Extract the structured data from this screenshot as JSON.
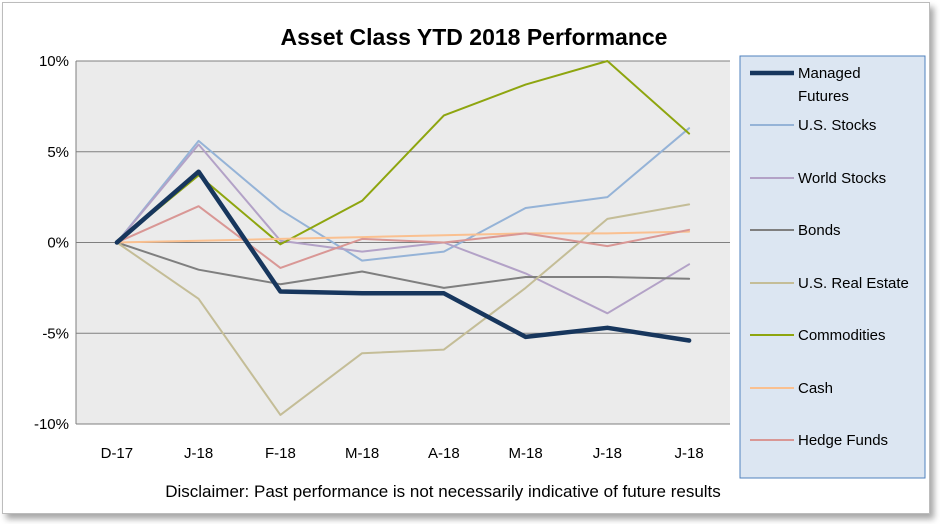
{
  "chart_data": {
    "type": "line",
    "title": "Asset Class YTD 2018 Performance",
    "categories": [
      "D-17",
      "J-18",
      "F-18",
      "M-18",
      "A-18",
      "M-18",
      "J-18",
      "J-18"
    ],
    "y_ticks": [
      "10%",
      "5%",
      "0%",
      "-5%",
      "-10%"
    ],
    "y_tick_values": [
      10,
      5,
      0,
      -5,
      -10
    ],
    "ylim": [
      -10,
      10
    ],
    "grid": true,
    "legend_position": "right",
    "series": [
      {
        "name": "U.S. Stocks",
        "color": "#95b3d7",
        "width": 2,
        "values": [
          0,
          5.6,
          1.8,
          -1.0,
          -0.5,
          1.9,
          2.5,
          6.3
        ]
      },
      {
        "name": "World Stocks",
        "color": "#b3a2c7",
        "width": 2,
        "values": [
          0,
          5.4,
          0.1,
          -0.5,
          0.0,
          -1.7,
          -3.9,
          -1.2
        ]
      },
      {
        "name": "Bonds",
        "color": "#7f7f7f",
        "width": 2,
        "values": [
          0,
          -1.5,
          -2.3,
          -1.6,
          -2.5,
          -1.9,
          -1.9,
          -2.0
        ]
      },
      {
        "name": "U.S. Real Estate",
        "color": "#c4bd97",
        "width": 2,
        "values": [
          0,
          -3.1,
          -9.5,
          -6.1,
          -5.9,
          -2.5,
          1.3,
          2.1
        ]
      },
      {
        "name": "Commodities",
        "color": "#8ea50f",
        "width": 2,
        "values": [
          0,
          3.7,
          -0.1,
          2.3,
          7.0,
          8.7,
          10.0,
          6.0
        ]
      },
      {
        "name": "Cash",
        "color": "#fac090",
        "width": 2,
        "values": [
          0,
          0.1,
          0.2,
          0.3,
          0.4,
          0.5,
          0.5,
          0.6
        ]
      },
      {
        "name": "Hedge Funds",
        "color": "#d99795",
        "width": 2,
        "values": [
          0,
          2.0,
          -1.4,
          0.2,
          0.0,
          0.5,
          -0.2,
          0.7
        ]
      },
      {
        "name": "Managed Futures",
        "color": "#17365d",
        "width": 4.5,
        "values": [
          0,
          3.9,
          -2.7,
          -2.8,
          -2.8,
          -5.2,
          -4.7,
          -5.4
        ]
      }
    ],
    "legend": [
      {
        "label_lines": [
          "Managed",
          "Futures"
        ],
        "color": "#17365d",
        "width": 4.5
      },
      {
        "label_lines": [
          "U.S. Stocks"
        ],
        "color": "#95b3d7",
        "width": 2
      },
      {
        "label_lines": [
          "World Stocks"
        ],
        "color": "#b3a2c7",
        "width": 2
      },
      {
        "label_lines": [
          "Bonds"
        ],
        "color": "#7f7f7f",
        "width": 2
      },
      {
        "label_lines": [
          "U.S. Real Estate"
        ],
        "color": "#c4bd97",
        "width": 2
      },
      {
        "label_lines": [
          "Commodities"
        ],
        "color": "#8ea50f",
        "width": 2
      },
      {
        "label_lines": [
          "Cash"
        ],
        "color": "#fac090",
        "width": 2
      },
      {
        "label_lines": [
          "Hedge Funds"
        ],
        "color": "#d99795",
        "width": 2
      }
    ],
    "footnote": "Disclaimer: Past performance is not necessarily indicative of future results"
  },
  "colors": {
    "plot_background": "#ebebeb",
    "legend_background": "#dce6f2",
    "legend_border": "#4f81bd",
    "gridline": "#7f7f7f"
  }
}
